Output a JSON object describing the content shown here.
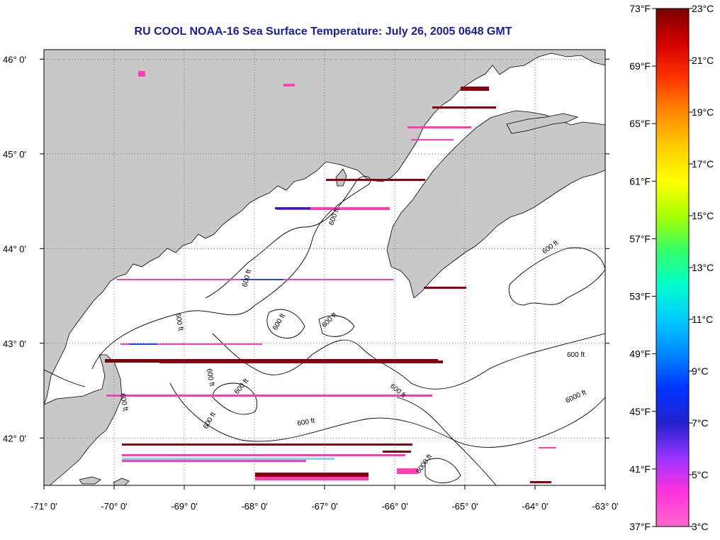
{
  "title": "RU COOL  NOAA-16  Sea Surface Temperature:  July 26, 2005 0648 GMT",
  "map": {
    "lon_range": [
      -71,
      -63
    ],
    "lat_range": [
      41.5,
      46.1
    ],
    "lon_ticks": [
      {
        "value": -71,
        "label": "-71° 0'"
      },
      {
        "value": -70,
        "label": "-70° 0'"
      },
      {
        "value": -69,
        "label": "-69° 0'"
      },
      {
        "value": -68,
        "label": "-68° 0'"
      },
      {
        "value": -67,
        "label": "-67° 0'"
      },
      {
        "value": -66,
        "label": "-66° 0'"
      },
      {
        "value": -65,
        "label": "-65° 0'"
      },
      {
        "value": -64,
        "label": "-64° 0'"
      },
      {
        "value": -63,
        "label": "-63° 0'"
      }
    ],
    "lat_ticks": [
      {
        "value": 46,
        "label": "46° 0'"
      },
      {
        "value": 45,
        "label": "45° 0'"
      },
      {
        "value": 44,
        "label": "44° 0'"
      },
      {
        "value": 43,
        "label": "43° 0'"
      },
      {
        "value": 42,
        "label": "42° 0'"
      }
    ],
    "contour_labels": [
      "600 ft",
      "600 ft",
      "600 ft",
      "600 ft",
      "600 ft",
      "600 ft",
      "600 ft",
      "600 ft",
      "600 ft",
      "600 ft",
      "600 ft",
      "600 ft",
      "600 ft",
      "6000 ft",
      "6000 ft"
    ],
    "colors": {
      "land": "#c8c8c8",
      "coast": "#000000",
      "grid": "#555555"
    }
  },
  "colorbar": {
    "fahrenheit": [
      "73°F",
      "69°F",
      "65°F",
      "61°F",
      "57°F",
      "53°F",
      "49°F",
      "45°F",
      "41°F",
      "37°F"
    ],
    "celsius": [
      "23°C",
      "21°C",
      "19°C",
      "17°C",
      "15°C",
      "13°C",
      "11°C",
      "9°C",
      "7°C",
      "5°C",
      "3°C"
    ],
    "gradient_colors": [
      "#7a0000",
      "#d40000",
      "#ff3300",
      "#ff8800",
      "#ffcc00",
      "#ffff00",
      "#aaff00",
      "#33ff66",
      "#00ffcc",
      "#00ccff",
      "#0088ff",
      "#0033ff",
      "#2222cc",
      "#9933ff",
      "#ff33dd",
      "#ff66cc"
    ]
  }
}
